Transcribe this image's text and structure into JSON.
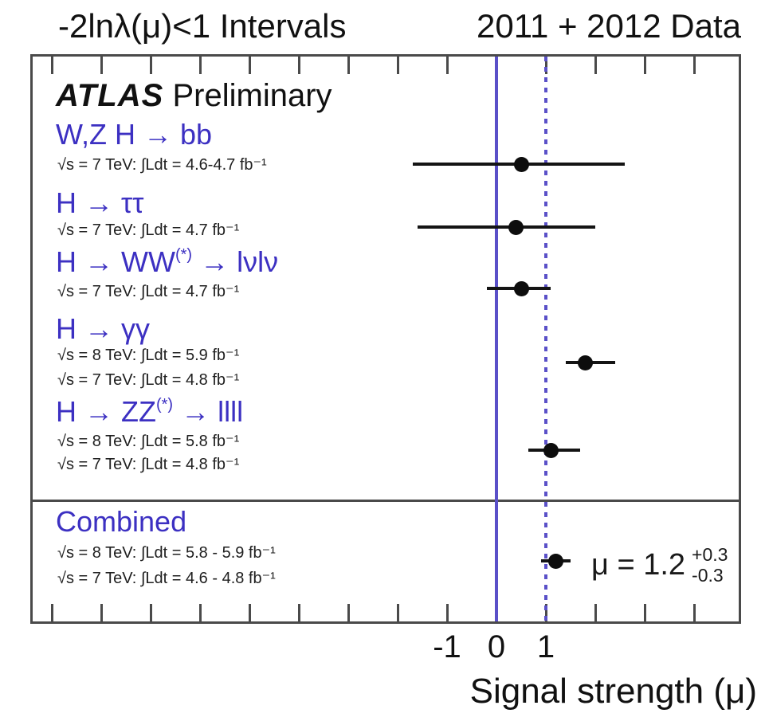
{
  "header": {
    "left_title": "-2lnλ(μ)<1 Intervals",
    "right_title": "2011 + 2012 Data"
  },
  "watermark": {
    "bold": "ATLAS",
    "normal": "Preliminary"
  },
  "colors": {
    "channel_label": "#3c30c2",
    "reference_line": "#5a50c8",
    "frame": "#4a4a4a",
    "marker": "#0d0d0d",
    "background": "#ffffff"
  },
  "chart_data": {
    "type": "scatter",
    "subtype": "horizontal-errorbar-dotplot",
    "title": "-2lnλ(μ)<1 Intervals",
    "subtitle": "2011 + 2012 Data",
    "xlabel": "Signal strength (μ)",
    "xlim": [
      -9.4,
      4.95
    ],
    "grid": false,
    "x_axis": {
      "tick_values": [
        -9,
        -8,
        -7,
        -6,
        -5,
        -4,
        -3,
        -2,
        -1,
        0,
        1,
        2,
        3,
        4
      ],
      "labeled_ticks": [
        {
          "value": -1,
          "label": "-1"
        },
        {
          "value": 0,
          "label": "0"
        },
        {
          "value": 1,
          "label": "1"
        }
      ]
    },
    "reference_lines": [
      {
        "x": 0,
        "style": "solid"
      },
      {
        "x": 1,
        "style": "dotted"
      }
    ],
    "points": [
      {
        "channel": "W,Z H → bb",
        "channel_sup": "",
        "channel_post": "",
        "lumi": [
          "√s = 7 TeV: ∫Ldt = 4.6-4.7 fb⁻¹"
        ],
        "mu": 0.5,
        "mu_low": -1.7,
        "mu_high": 2.6,
        "row_y": 206
      },
      {
        "channel": "H → ττ",
        "channel_sup": "",
        "channel_post": "",
        "lumi": [
          "√s = 7 TeV: ∫Ldt = 4.7 fb⁻¹"
        ],
        "mu": 0.4,
        "mu_low": -1.6,
        "mu_high": 2.0,
        "row_y": 285
      },
      {
        "channel": "H → WW",
        "channel_sup": "(*)",
        "channel_post": " → lνlν",
        "lumi": [
          "√s = 7 TeV: ∫Ldt = 4.7 fb⁻¹"
        ],
        "mu": 0.5,
        "mu_low": -0.2,
        "mu_high": 1.1,
        "row_y": 362
      },
      {
        "channel": "H → γγ",
        "channel_sup": "",
        "channel_post": "",
        "lumi": [
          "√s = 8 TeV: ∫Ldt = 5.9 fb⁻¹",
          "√s = 7 TeV: ∫Ldt = 4.8 fb⁻¹"
        ],
        "mu": 1.8,
        "mu_low": 1.4,
        "mu_high": 2.4,
        "row_y": 455
      },
      {
        "channel": "H → ZZ",
        "channel_sup": "(*)",
        "channel_post": " → llll",
        "lumi": [
          "√s = 8 TeV: ∫Ldt = 5.8 fb⁻¹",
          "√s = 7 TeV: ∫Ldt = 4.8 fb⁻¹"
        ],
        "mu": 1.1,
        "mu_low": 0.65,
        "mu_high": 1.7,
        "row_y": 565
      },
      {
        "channel": "Combined",
        "channel_sup": "",
        "channel_post": "",
        "lumi": [
          "√s = 8 TeV: ∫Ldt = 5.8 - 5.9 fb⁻¹",
          "√s = 7 TeV: ∫Ldt = 4.6 - 4.8 fb⁻¹"
        ],
        "mu": 1.2,
        "mu_low": 0.9,
        "mu_high": 1.5,
        "row_y": 704
      }
    ],
    "combined_result": {
      "label": "μ = 1.2",
      "err_up": "+0.3",
      "err_down": "-0.3"
    }
  }
}
